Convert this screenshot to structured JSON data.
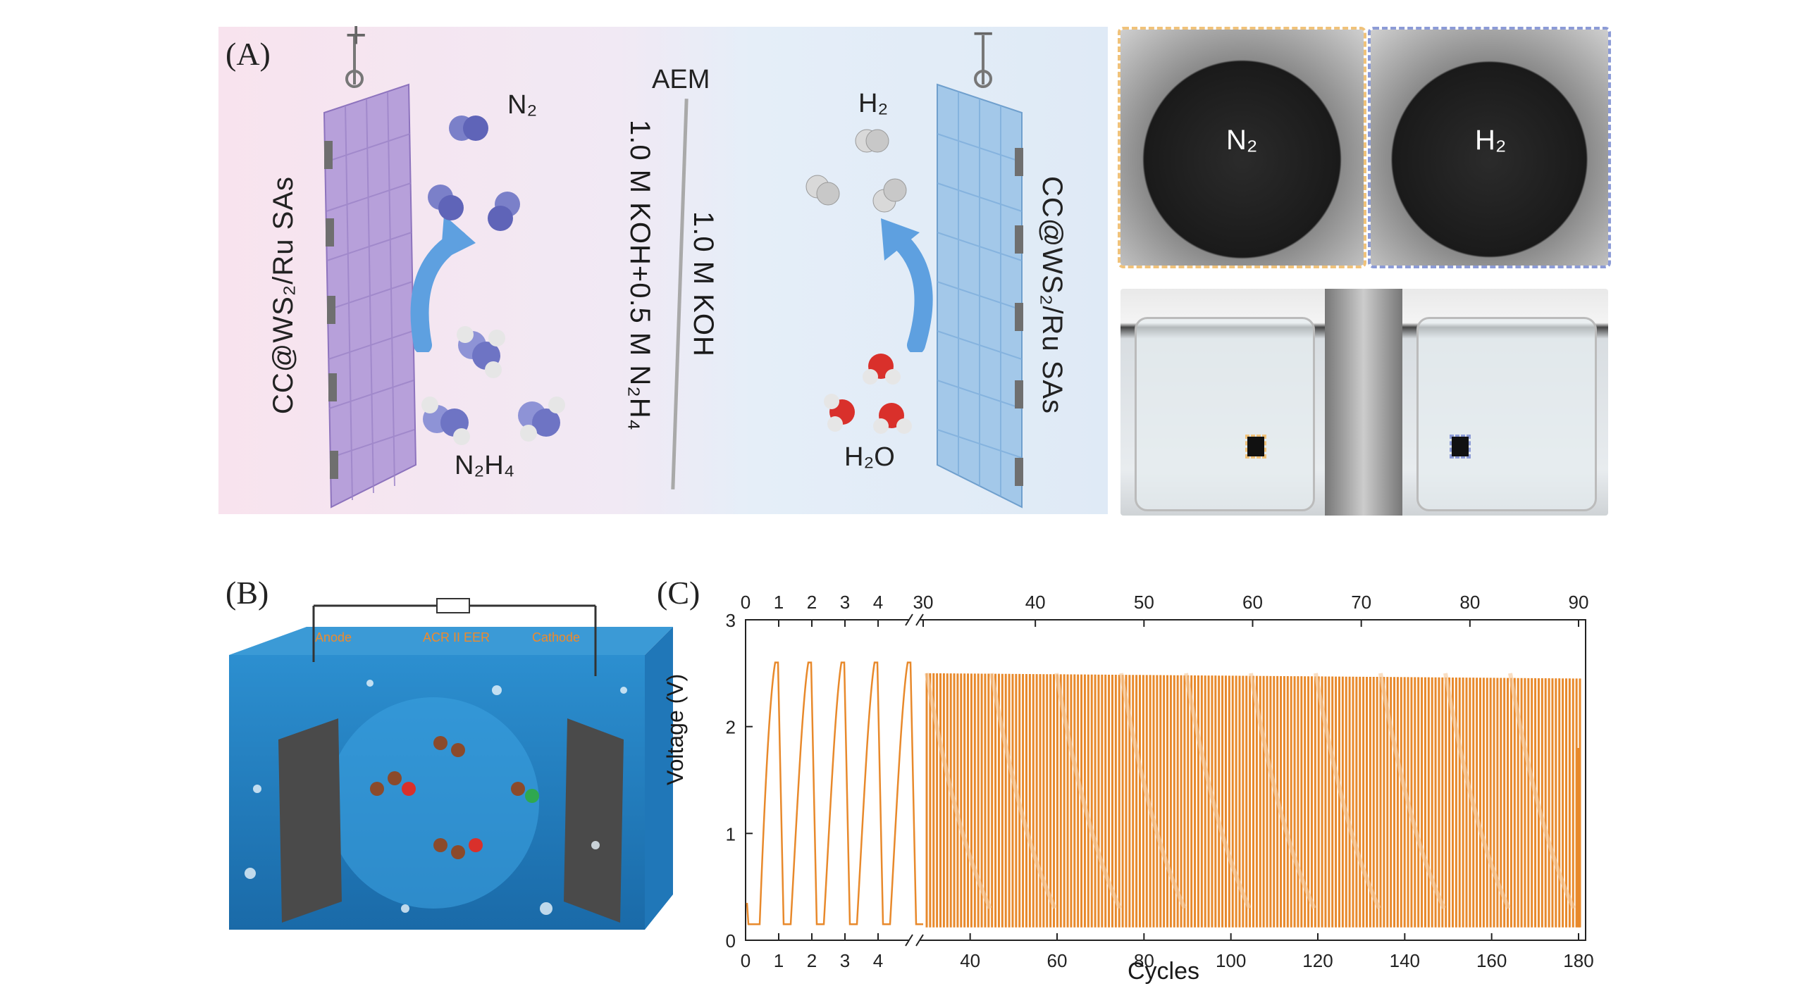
{
  "panelA": {
    "label": "(A)",
    "plus": "+",
    "minus": "−",
    "aem": "AEM",
    "electrode_left": "CC@WS₂/Ru SAs",
    "electrode_right": "CC@WS₂/Ru SAs",
    "electrolyte_left": "1.0 M KOH+0.5 M N₂H₄",
    "electrolyte_right": "1.0 M KOH",
    "mol_n2": "N₂",
    "mol_n2h4": "N₂H₄",
    "mol_h2": "H₂",
    "mol_h2o": "H₂O",
    "photo_label_n2": "N₂",
    "photo_label_h2": "H₂",
    "colors": {
      "left_bg": "#f7e4ef",
      "right_bg": "#e2edf8",
      "left_electrode": "#b39bd6",
      "right_electrode": "#9ec3e6",
      "arrow": "#4a90d9",
      "inset_left": "#f0c27a",
      "inset_right": "#8c9bd6"
    }
  },
  "panelB": {
    "label": "(B)",
    "anode": "Anode",
    "middle": "ACR II EER",
    "cathode": "Cathode",
    "electron": "e",
    "colors": {
      "water": "#1e7fc4",
      "text": "#f08a2a"
    }
  },
  "panelC": {
    "label": "(C)",
    "ylabel": "Voltage (V)",
    "xlabel": "Cycles",
    "chart_data": {
      "type": "line",
      "title": "",
      "xlabel": "Cycles",
      "ylabel": "Voltage (V)",
      "ylim": [
        0,
        3
      ],
      "yticks": [
        "0",
        "1",
        "2",
        "3"
      ],
      "top_ticks": [
        "0",
        "1",
        "2",
        "3",
        "4",
        "30",
        "40",
        "50",
        "60",
        "70",
        "80",
        "90"
      ],
      "bottom_ticks": [
        "0",
        "1",
        "2",
        "3",
        "4",
        "40",
        "60",
        "80",
        "100",
        "120",
        "140",
        "160",
        "180"
      ],
      "axis_break": true,
      "early_segment": {
        "cycles": 5,
        "min_v": 0.15,
        "max_v": 2.6
      },
      "late_segment": {
        "top_range": [
          30,
          90
        ],
        "bottom_range": [
          30,
          180
        ],
        "min_v": 0.12,
        "max_v_start": 2.5,
        "max_v_end": 2.45,
        "lower_band_v": 1.8
      },
      "color": "#e8892b"
    }
  }
}
